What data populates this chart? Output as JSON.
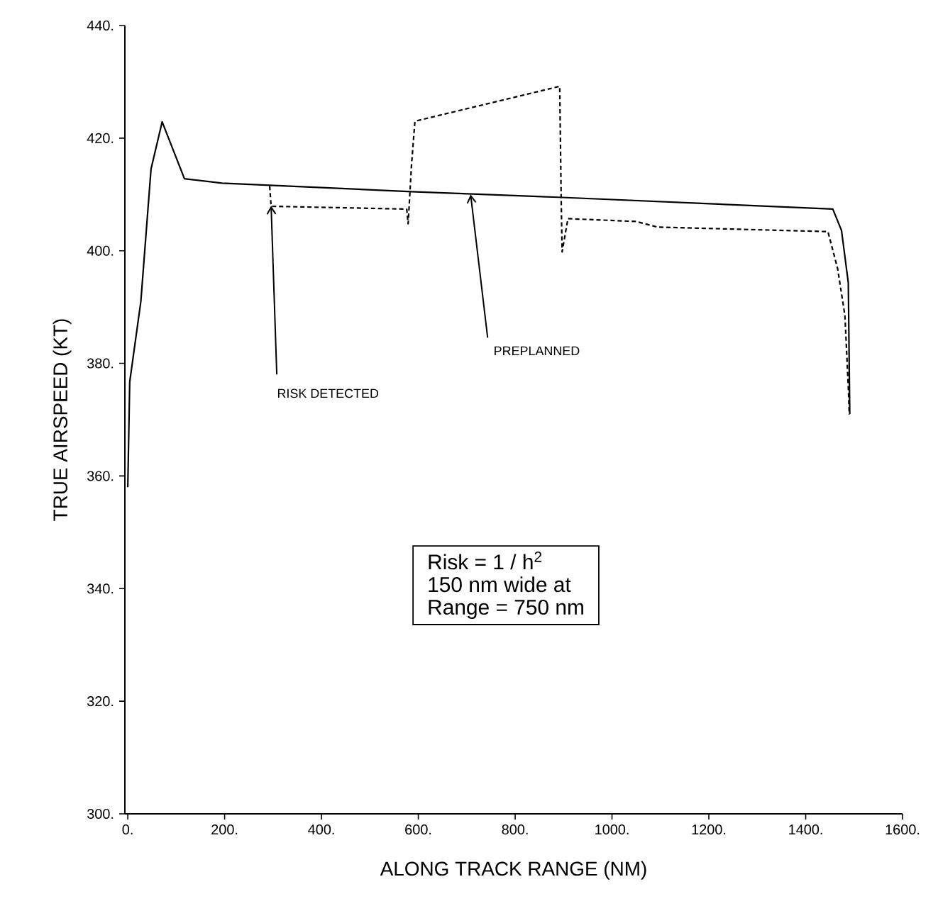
{
  "chart_data": {
    "type": "line",
    "xlabel": "ALONG TRACK RANGE (NM)",
    "ylabel": "TRUE AIRSPEED (KT)",
    "xlim": [
      -6,
      1600
    ],
    "ylim": [
      300,
      440
    ],
    "xticks": [
      {
        "value": 0,
        "label": "0."
      },
      {
        "value": 200,
        "label": "200."
      },
      {
        "value": 400,
        "label": "400."
      },
      {
        "value": 600,
        "label": "600."
      },
      {
        "value": 800,
        "label": "800."
      },
      {
        "value": 1000,
        "label": "1000."
      },
      {
        "value": 1200,
        "label": "1200."
      },
      {
        "value": 1400,
        "label": "1400."
      },
      {
        "value": 1600,
        "label": "1600."
      }
    ],
    "yticks": [
      {
        "value": 300,
        "label": "300."
      },
      {
        "value": 320,
        "label": "320."
      },
      {
        "value": 340,
        "label": "340."
      },
      {
        "value": 360,
        "label": "360."
      },
      {
        "value": 380,
        "label": "380."
      },
      {
        "value": 400,
        "label": "400."
      },
      {
        "value": 420,
        "label": "420."
      },
      {
        "value": 440,
        "label": "440."
      }
    ],
    "grid": false,
    "marker": "none",
    "series": [
      {
        "color": "#000000",
        "line_style": "solid",
        "x": [
          0,
          4,
          27,
          48,
          71,
          117,
          195,
          586,
          889,
          1456,
          1474,
          1488,
          1491
        ],
        "values": [
          358,
          376.7,
          391,
          414.5,
          422.9,
          412.8,
          412,
          410.5,
          409.5,
          407.4,
          403.6,
          394.3,
          371
        ]
      },
      {
        "color": "#000000",
        "line_style": "dashed",
        "x": [
          293,
          296,
          576,
          579,
          586,
          593,
          892,
          895,
          897,
          909,
          1050,
          1094,
          1446,
          1466,
          1481,
          1488,
          1490
        ],
        "values": [
          411.5,
          407.9,
          407.4,
          404.8,
          415.3,
          423,
          429.2,
          409.5,
          399.8,
          405.7,
          405.2,
          404.2,
          403.4,
          396.8,
          388.5,
          375.8,
          370.9
        ]
      }
    ],
    "annotations": [
      {
        "text": "RISK DETECTED",
        "x": 296,
        "y": 408
      },
      {
        "text": "PREPLANNED",
        "x": 708,
        "y": 410
      },
      "Risk = 1 / h$^{2}$",
      "150 nm wide at",
      "Range = 750 nm"
    ]
  }
}
